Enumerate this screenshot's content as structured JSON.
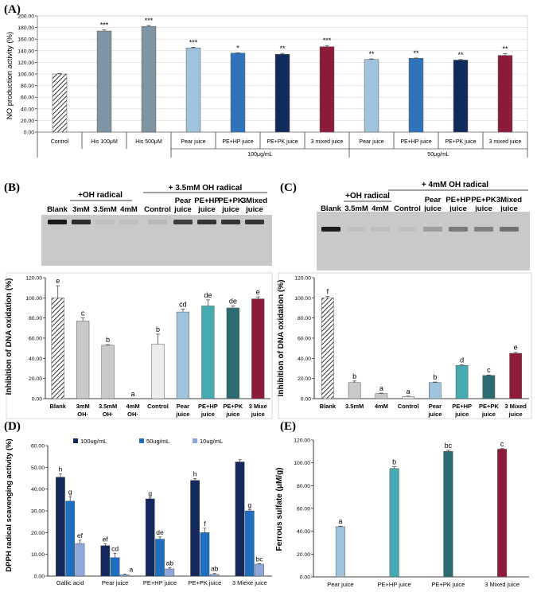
{
  "panel_labels": [
    "(A)",
    "(B)",
    "(C)",
    "(D)",
    "(E)"
  ],
  "colors": {
    "control": "#bdbdbd",
    "his": "#7f95a3",
    "pear": "#9ec3dc",
    "pehp": "#2f73bb",
    "pepk": "#0f2b5c",
    "mixed": "#8e1b3a",
    "gray": "#c9c9c9",
    "light": "#ececec",
    "teal": "#45aab1",
    "dteal": "#2c6d73",
    "d_dark": "#13285c",
    "d_mid": "#1f6fc0",
    "d_light": "#8fa7d8",
    "gel_bg": "#c9c9c9",
    "gel_band": "#1a1a1a"
  },
  "gel_b": {
    "top_label": "+ 3.5mM OH radical",
    "oh_label": "+OH radical",
    "lane_labels": [
      "Blank",
      "3mM",
      "3.5mM",
      "4mM",
      "Control",
      "Pear juice",
      "PE+HP juice",
      "PE+PK juice",
      "3Mixed juice"
    ],
    "band_intensity": [
      1,
      0.9,
      0.05,
      0.05,
      0.1,
      0.8,
      0.85,
      0.85,
      0.85
    ]
  },
  "gel_c": {
    "top_label": "+ 4mM OH radical",
    "oh_label": "+OH radical",
    "lane_labels": [
      "Blank",
      "3.5mM",
      "4mM",
      "Control",
      "Pear juice",
      "PE+HP juice",
      "PE+PK juice",
      "3Mixed juice"
    ],
    "band_intensity": [
      1,
      0.05,
      0.05,
      0.05,
      0.25,
      0.45,
      0.4,
      0.5
    ]
  },
  "chart_data": [
    {
      "id": "A",
      "type": "bar",
      "ylabel": "NO production activity (%)",
      "ylim": [
        0,
        200
      ],
      "yticks": [
        0,
        20,
        40,
        60,
        80,
        100,
        120,
        140,
        160,
        180,
        200
      ],
      "tick_labels": [
        "0.00",
        "20.00",
        "40.00",
        "60.00",
        "80.00",
        "100.00",
        "120.00",
        "140.00",
        "160.00",
        "180.00",
        "200.00"
      ],
      "categories": [
        "Control",
        "His 100μM",
        "His 500μM",
        "Pear juice",
        "PE+HP juice",
        "PE+PK juice",
        "3 mixed juice",
        "Pear juice",
        "PE+HP juice",
        "PE+PK juice",
        "3 mixed juice"
      ],
      "values": [
        100,
        174,
        182,
        145,
        136,
        134,
        147,
        125,
        127,
        124,
        132
      ],
      "errors": [
        1,
        2,
        1.5,
        1,
        0.5,
        1.5,
        2,
        1,
        0.5,
        1,
        3
      ],
      "annotations": [
        "",
        "***",
        "***",
        "***",
        "*",
        "**",
        "***",
        "**",
        "**",
        "**",
        "**"
      ],
      "color_keys": [
        "control",
        "his",
        "his",
        "pear",
        "pehp",
        "pepk",
        "mixed",
        "pear",
        "pehp",
        "pepk",
        "mixed"
      ],
      "group_labels": [
        "100μg/mL",
        "50μg/mL"
      ]
    },
    {
      "id": "B",
      "type": "bar",
      "ylabel": "Inhibition of DNA oxidation (%)",
      "ylim": [
        0,
        120
      ],
      "tick_labels": [
        "0.00",
        "20.00",
        "40.00",
        "60.00",
        "80.00",
        "100.00",
        "120.00"
      ],
      "categories": [
        "Blank",
        "3mM OH·",
        "3.5mM OH·",
        "4mM OH·",
        "Control",
        "Pear juice",
        "PE+HP juice",
        "PE+PK juice",
        "3 Mixe juice"
      ],
      "values": [
        100,
        77,
        53,
        0,
        54,
        86,
        92,
        90,
        99
      ],
      "errors": [
        12,
        3,
        0.5,
        0,
        10,
        3,
        6,
        2,
        2
      ],
      "annotations": [
        "e",
        "c",
        "b",
        "a",
        "b",
        "cd",
        "de",
        "de",
        "e"
      ],
      "color_keys": [
        "control",
        "gray",
        "gray",
        "gray",
        "light",
        "pear",
        "teal",
        "dteal",
        "mixed"
      ]
    },
    {
      "id": "C",
      "type": "bar",
      "ylabel": "Inhibition of DNA oxidation (%)",
      "ylim": [
        0,
        120
      ],
      "tick_labels": [
        "0.00",
        "20.00",
        "40.00",
        "60.00",
        "80.00",
        "100.00",
        "120.00"
      ],
      "categories": [
        "Blank",
        "3.5mM",
        "4mM",
        "Control",
        "Pear juice",
        "PE+HP juice",
        "PE+PK juice",
        "3 Mixed juice"
      ],
      "values": [
        100,
        16,
        5,
        2,
        16,
        33,
        23,
        45
      ],
      "errors": [
        1.5,
        1.5,
        0.5,
        0.5,
        0.5,
        0.5,
        0.5,
        1
      ],
      "annotations": [
        "f",
        "b",
        "a",
        "a",
        "b",
        "d",
        "c",
        "e"
      ],
      "color_keys": [
        "control",
        "gray",
        "gray",
        "light",
        "pear",
        "teal",
        "dteal",
        "mixed"
      ]
    },
    {
      "id": "D",
      "type": "bar",
      "ylabel": "DPPH radical scavenging activity (%)",
      "ylim": [
        0,
        60
      ],
      "tick_labels": [
        "0.00",
        "10.00",
        "20.00",
        "30.00",
        "40.00",
        "50.00",
        "60.00"
      ],
      "categories": [
        "Gallic acid",
        "Pear juice",
        "PE+HP juice",
        "PE+PK juice",
        "3 Miexe juice"
      ],
      "series": [
        {
          "name": "100ug/mL",
          "color_key": "d_dark",
          "values": [
            45.5,
            14,
            35.5,
            44,
            52.5
          ],
          "errors": [
            1.5,
            0.8,
            0.4,
            0.8,
            1
          ],
          "annotations": [
            "h",
            "ef",
            "g",
            "h",
            ""
          ]
        },
        {
          "name": "50ug/mL",
          "color_key": "d_mid",
          "values": [
            34.5,
            8.5,
            17,
            20,
            30
          ],
          "errors": [
            2,
            2,
            1,
            2,
            0.5
          ],
          "annotations": [
            "g",
            "cd",
            "de",
            "f",
            "g"
          ]
        },
        {
          "name": "10ug/mL",
          "color_key": "d_light",
          "values": [
            15,
            0.6,
            3.3,
            0.8,
            5.5
          ],
          "errors": [
            1.5,
            0.3,
            0.5,
            0.4,
            0.2
          ],
          "annotations": [
            "ef",
            "a",
            "ab",
            "ab",
            "bc"
          ]
        }
      ],
      "legend": "top"
    },
    {
      "id": "E",
      "type": "bar",
      "ylabel": "Ferrous sulfate (μM/g)",
      "ylim": [
        0,
        120
      ],
      "tick_labels": [
        "0.00",
        "20.00",
        "40.00",
        "60.00",
        "80.00",
        "100.00",
        "120.00"
      ],
      "categories": [
        "Pear juice",
        "PE+HP juice",
        "PE+PK juice",
        "3 Mixed juice"
      ],
      "values": [
        44,
        95,
        110,
        112
      ],
      "errors": [
        0.5,
        1.5,
        1,
        0.5
      ],
      "annotations": [
        "a",
        "b",
        "bc",
        "c"
      ],
      "color_keys": [
        "pear",
        "teal",
        "dteal",
        "mixed"
      ]
    }
  ]
}
